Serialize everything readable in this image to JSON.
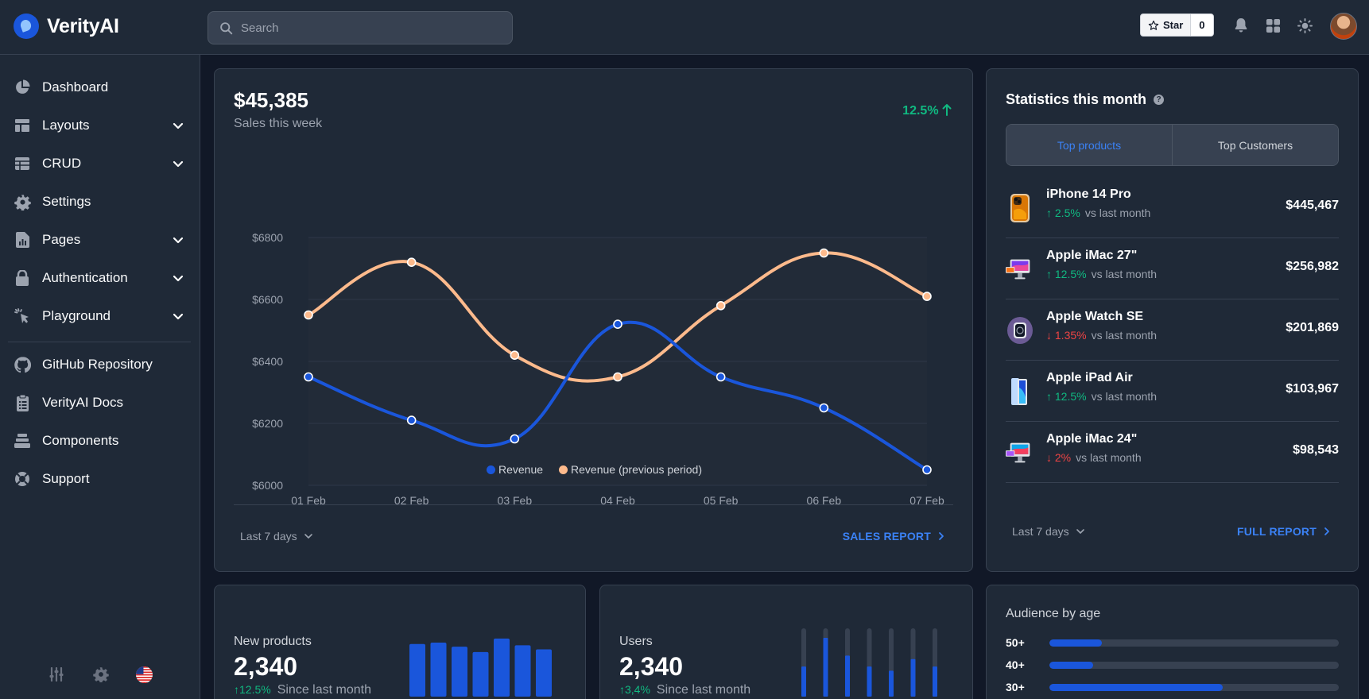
{
  "app": {
    "name": "VerityAI"
  },
  "search": {
    "placeholder": "Search"
  },
  "github": {
    "star_label": "Star",
    "star_count": "0"
  },
  "top_icons": [
    "bell-icon",
    "apps-grid-icon",
    "sun-icon"
  ],
  "sidebar": {
    "items": [
      {
        "label": "Dashboard",
        "icon": "pie-chart-icon",
        "expandable": false
      },
      {
        "label": "Layouts",
        "icon": "layout-icon",
        "expandable": true
      },
      {
        "label": "CRUD",
        "icon": "table-icon",
        "expandable": true
      },
      {
        "label": "Settings",
        "icon": "gear-icon",
        "expandable": false
      },
      {
        "label": "Pages",
        "icon": "document-chart-icon",
        "expandable": true
      },
      {
        "label": "Authentication",
        "icon": "lock-icon",
        "expandable": true
      },
      {
        "label": "Playground",
        "icon": "cursor-click-icon",
        "expandable": true
      }
    ],
    "links": [
      {
        "label": "GitHub Repository",
        "icon": "github-icon"
      },
      {
        "label": "VerityAI Docs",
        "icon": "clipboard-list-icon"
      },
      {
        "label": "Components",
        "icon": "layers-icon"
      },
      {
        "label": "Support",
        "icon": "lifebuoy-icon"
      }
    ],
    "bottom_icons": [
      "sliders-icon",
      "gear-icon",
      "us-flag-icon"
    ]
  },
  "sales": {
    "amount": "$45,385",
    "subtitle": "Sales this week",
    "change": "12.5%",
    "range_label": "Last 7 days",
    "report_label": "SALES REPORT"
  },
  "chart_data": {
    "type": "line",
    "x": [
      "01 Feb",
      "02 Feb",
      "03 Feb",
      "04 Feb",
      "05 Feb",
      "06 Feb",
      "07 Feb"
    ],
    "y_ticks": [
      "$6800",
      "$6600",
      "$6400",
      "$6200",
      "$6000"
    ],
    "ylim": [
      6000,
      6800
    ],
    "grid": true,
    "legend_position": "bottom-center",
    "series": [
      {
        "name": "Revenue",
        "color": "#1a56db",
        "values": [
          6350,
          6210,
          6150,
          6520,
          6350,
          6250,
          6050
        ]
      },
      {
        "name": "Revenue (previous period)",
        "color": "#fdba8c",
        "values": [
          6550,
          6720,
          6420,
          6350,
          6580,
          6750,
          6610
        ]
      }
    ]
  },
  "stats": {
    "title": "Statistics this month",
    "tabs": [
      "Top products",
      "Top Customers"
    ],
    "vs_label": "vs last month",
    "products": [
      {
        "name": "iPhone 14 Pro",
        "change": "2.5%",
        "direction": "up",
        "value": "$445,467",
        "icon": "iphone-icon"
      },
      {
        "name": "Apple iMac 27\"",
        "change": "12.5%",
        "direction": "up",
        "value": "$256,982",
        "icon": "imac-icon"
      },
      {
        "name": "Apple Watch SE",
        "change": "1.35%",
        "direction": "down",
        "value": "$201,869",
        "icon": "watch-icon"
      },
      {
        "name": "Apple iPad Air",
        "change": "12.5%",
        "direction": "up",
        "value": "$103,967",
        "icon": "ipad-icon"
      },
      {
        "name": "Apple iMac 24\"",
        "change": "2%",
        "direction": "down",
        "value": "$98,543",
        "icon": "imac-icon"
      }
    ],
    "range_label": "Last 7 days",
    "report_label": "FULL REPORT"
  },
  "new_products": {
    "title": "New products",
    "value": "2,340",
    "change": "12.5%",
    "footer": "Since last month",
    "bars": [
      0.78,
      0.8,
      0.74,
      0.66,
      0.86,
      0.76,
      0.7
    ]
  },
  "users": {
    "title": "Users",
    "value": "2,340",
    "change": "3,4%",
    "footer": "Since last month",
    "bars": [
      0.44,
      0.86,
      0.6,
      0.44,
      0.38,
      0.55,
      0.44
    ]
  },
  "audience": {
    "title": "Audience by age",
    "rows": [
      {
        "label": "50+",
        "percent": 18
      },
      {
        "label": "40+",
        "percent": 15
      },
      {
        "label": "30+",
        "percent": 60
      }
    ]
  }
}
